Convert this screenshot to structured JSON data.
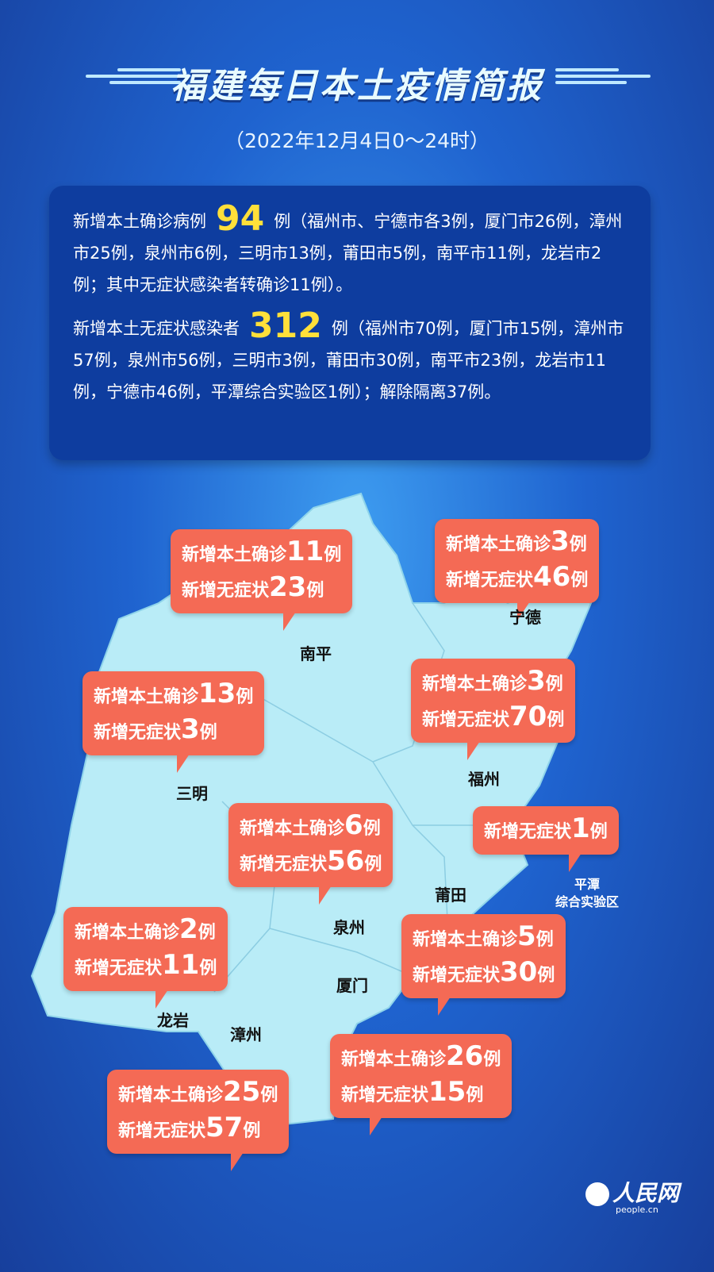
{
  "header": {
    "title": "福建每日本土疫情简报",
    "date": "（2022年12月4日0～24时）"
  },
  "summary": {
    "confirmed_prefix": "新增本土确诊病例",
    "confirmed_total": "94",
    "confirmed_detail": "例（福州市、宁德市各3例，厦门市26例，漳州市25例，泉州市6例，三明市13例，莆田市5例，南平市11例，龙岩市2例；其中无症状感染者转确诊11例）。",
    "asym_prefix": "新增本土无症状感染者",
    "asym_total": "312",
    "asym_detail": "例（福州市70例，厦门市15例，漳州市57例，泉州市56例，三明市3例，莆田市30例，南平市23例，龙岩市11例，宁德市46例，平潭综合实验区1例）；解除隔离37例。"
  },
  "labels": {
    "confirmed": "新增本土确诊",
    "asym": "新增无症状",
    "unit": "例"
  },
  "regions": [
    {
      "name": "南平",
      "confirmed": "11",
      "asym": "23"
    },
    {
      "name": "宁德",
      "confirmed": "3",
      "asym": "46"
    },
    {
      "name": "三明",
      "confirmed": "13",
      "asym": "3"
    },
    {
      "name": "福州",
      "confirmed": "3",
      "asym": "70"
    },
    {
      "name": "泉州",
      "confirmed": "6",
      "asym": "56"
    },
    {
      "name": "平潭\n综合实验区",
      "asym": "1"
    },
    {
      "name": "莆田",
      "confirmed": "5",
      "asym": "30"
    },
    {
      "name": "龙岩",
      "confirmed": "2",
      "asym": "11"
    },
    {
      "name": "厦门",
      "confirmed": "26",
      "asym": "15"
    },
    {
      "name": "漳州",
      "confirmed": "25",
      "asym": "57"
    }
  ],
  "logo": {
    "text": "人民网",
    "url_text": "people.cn"
  },
  "colors": {
    "accent": "#ffe03a",
    "bubble": "#f46a55",
    "map": "#b9ecf7",
    "panel": "#0e3d9f"
  }
}
